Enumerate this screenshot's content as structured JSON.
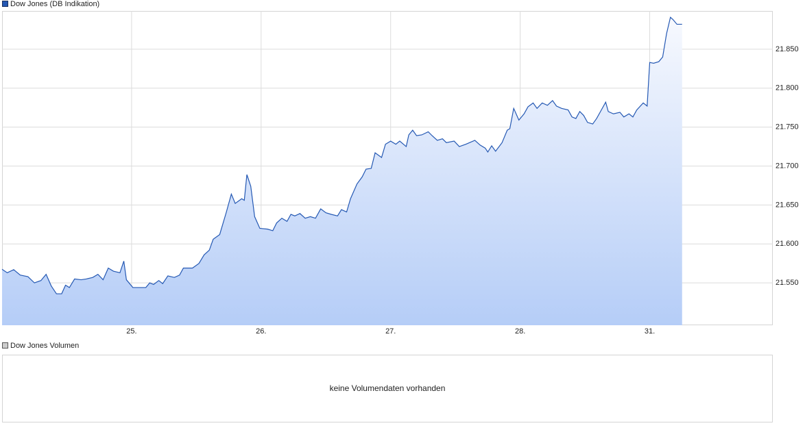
{
  "chart_data": {
    "type": "area-line",
    "xlim": [
      0,
      5.95
    ],
    "ylim": [
      21495.6,
      21899.1
    ],
    "xticks": [
      {
        "value": 1,
        "label": "25."
      },
      {
        "value": 2,
        "label": "26."
      },
      {
        "value": 3,
        "label": "27."
      },
      {
        "value": 4,
        "label": "28."
      },
      {
        "value": 5,
        "label": "31."
      }
    ],
    "yticks": [
      {
        "value": 21550,
        "label": "21.550"
      },
      {
        "value": 21600,
        "label": "21.600"
      },
      {
        "value": 21650,
        "label": "21.650"
      },
      {
        "value": 21700,
        "label": "21.700"
      },
      {
        "value": 21750,
        "label": "21.750"
      },
      {
        "value": 21800,
        "label": "21.800"
      },
      {
        "value": 21850,
        "label": "21.850"
      }
    ],
    "grid": true,
    "x": [
      0,
      0.04,
      0.09,
      0.14,
      0.2,
      0.25,
      0.3,
      0.34,
      0.38,
      0.42,
      0.46,
      0.49,
      0.52,
      0.56,
      0.61,
      0.65,
      0.7,
      0.74,
      0.78,
      0.82,
      0.86,
      0.91,
      0.94,
      0.96,
      1.01,
      1.11,
      1.14,
      1.17,
      1.21,
      1.24,
      1.28,
      1.33,
      1.37,
      1.4,
      1.47,
      1.52,
      1.56,
      1.6,
      1.63,
      1.68,
      1.73,
      1.77,
      1.8,
      1.85,
      1.87,
      1.89,
      1.92,
      1.95,
      1.99,
      2.05,
      2.09,
      2.12,
      2.16,
      2.2,
      2.23,
      2.26,
      2.3,
      2.34,
      2.38,
      2.42,
      2.46,
      2.5,
      2.54,
      2.59,
      2.62,
      2.66,
      2.69,
      2.74,
      2.78,
      2.81,
      2.85,
      2.88,
      2.93,
      2.96,
      3.0,
      3.04,
      3.07,
      3.12,
      3.14,
      3.17,
      3.2,
      3.24,
      3.29,
      3.32,
      3.36,
      3.4,
      3.43,
      3.49,
      3.53,
      3.58,
      3.65,
      3.69,
      3.73,
      3.75,
      3.78,
      3.81,
      3.86,
      3.9,
      3.92,
      3.95,
      3.99,
      4.03,
      4.06,
      4.1,
      4.13,
      4.17,
      4.21,
      4.25,
      4.28,
      4.32,
      4.37,
      4.4,
      4.43,
      4.46,
      4.49,
      4.52,
      4.56,
      4.59,
      4.62,
      4.66,
      4.68,
      4.72,
      4.77,
      4.8,
      4.84,
      4.87,
      4.9,
      4.95,
      4.98,
      5.0,
      5.03,
      5.07,
      5.1,
      5.13,
      5.16,
      5.18,
      5.21,
      5.25
    ],
    "series": [
      {
        "name": "Dow Jones (DB Indikation)",
        "color": "#2458b3",
        "values": [
          21567.5,
          21563,
          21567,
          21560,
          21558,
          21550,
          21553,
          21561,
          21546,
          21536,
          21536,
          21547,
          21544,
          21555,
          21554,
          21555,
          21557,
          21561,
          21554,
          21569,
          21565,
          21563,
          21578,
          21554,
          21544,
          21544,
          21550,
          21548,
          21553,
          21549,
          21559,
          21557,
          21560,
          21569,
          21569,
          21575,
          21586,
          21592,
          21606,
          21612,
          21640,
          21664,
          21652,
          21658,
          21656,
          21689,
          21674,
          21635,
          21620,
          21619,
          21617,
          21627,
          21633,
          21629,
          21638,
          21636,
          21639,
          21633,
          21635,
          21633,
          21645,
          21640,
          21638,
          21636,
          21644,
          21641,
          21658,
          21677,
          21686,
          21696,
          21697,
          21717,
          21711,
          21728,
          21732,
          21728,
          21732,
          21725,
          21740,
          21746,
          21739,
          21740,
          21744,
          21739,
          21733,
          21735,
          21730,
          21732,
          21725,
          21728,
          21733,
          21727,
          21723,
          21718,
          21726,
          21719,
          21730,
          21746,
          21748,
          21774,
          21759,
          21767,
          21776,
          21781,
          21774,
          21781,
          21778,
          21784,
          21777,
          21774,
          21772,
          21763,
          21761,
          21770,
          21765,
          21756,
          21754,
          21761,
          21770,
          21782,
          21770,
          21767,
          21769,
          21763,
          21767,
          21763,
          21772,
          21781,
          21777,
          21833,
          21832,
          21834,
          21840,
          21870,
          21891,
          21888,
          21882,
          21882
        ]
      }
    ]
  },
  "volume_panel": {
    "title": "Dow Jones Volumen",
    "message": "keine Volumendaten vorhanden"
  }
}
